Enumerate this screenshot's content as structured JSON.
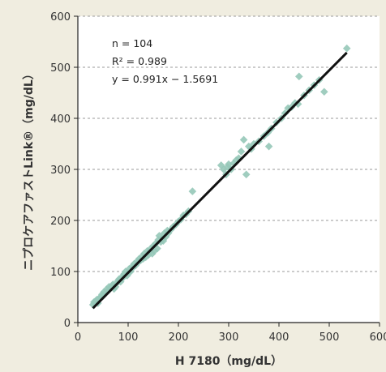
{
  "chart_data": {
    "type": "scatter",
    "xlabel": "H 7180（mg/dL）",
    "ylabel": "ニプロケアファストLink®（mg/dL）",
    "xlim": [
      0,
      600
    ],
    "ylim": [
      0,
      600
    ],
    "x_ticks": [
      "0",
      "100",
      "200",
      "300",
      "400",
      "500",
      "600"
    ],
    "y_ticks": [
      "0",
      "100",
      "200",
      "300",
      "400",
      "500",
      "600"
    ],
    "grid": "dashed-horizontal",
    "annotations": [
      "n = 104",
      "R² = 0.989",
      "y = 0.991x − 1.5691"
    ],
    "regression": {
      "slope": 0.991,
      "intercept": -1.5691,
      "x_range": [
        30,
        535
      ]
    },
    "marker": "diamond",
    "point_color": "#96c8b8",
    "line_color": "#111111",
    "points": [
      [
        30,
        35
      ],
      [
        32,
        40
      ],
      [
        35,
        42
      ],
      [
        38,
        45
      ],
      [
        40,
        38
      ],
      [
        42,
        47
      ],
      [
        45,
        50
      ],
      [
        48,
        55
      ],
      [
        50,
        52
      ],
      [
        52,
        60
      ],
      [
        55,
        58
      ],
      [
        57,
        65
      ],
      [
        60,
        62
      ],
      [
        62,
        70
      ],
      [
        65,
        68
      ],
      [
        68,
        72
      ],
      [
        70,
        75
      ],
      [
        72,
        66
      ],
      [
        75,
        70
      ],
      [
        78,
        78
      ],
      [
        80,
        82
      ],
      [
        82,
        85
      ],
      [
        85,
        80
      ],
      [
        88,
        90
      ],
      [
        90,
        88
      ],
      [
        92,
        95
      ],
      [
        95,
        100
      ],
      [
        98,
        92
      ],
      [
        100,
        98
      ],
      [
        102,
        105
      ],
      [
        105,
        100
      ],
      [
        108,
        110
      ],
      [
        110,
        108
      ],
      [
        112,
        115
      ],
      [
        115,
        112
      ],
      [
        118,
        120
      ],
      [
        120,
        118
      ],
      [
        122,
        125
      ],
      [
        125,
        122
      ],
      [
        128,
        130
      ],
      [
        130,
        125
      ],
      [
        132,
        135
      ],
      [
        135,
        128
      ],
      [
        138,
        140
      ],
      [
        140,
        132
      ],
      [
        142,
        138
      ],
      [
        145,
        145
      ],
      [
        148,
        135
      ],
      [
        150,
        150
      ],
      [
        152,
        140
      ],
      [
        155,
        155
      ],
      [
        158,
        145
      ],
      [
        160,
        162
      ],
      [
        162,
        170
      ],
      [
        165,
        158
      ],
      [
        168,
        165
      ],
      [
        170,
        160
      ],
      [
        172,
        175
      ],
      [
        175,
        168
      ],
      [
        178,
        180
      ],
      [
        180,
        175
      ],
      [
        185,
        182
      ],
      [
        190,
        188
      ],
      [
        195,
        192
      ],
      [
        200,
        198
      ],
      [
        205,
        202
      ],
      [
        210,
        210
      ],
      [
        215,
        212
      ],
      [
        220,
        218
      ],
      [
        228,
        257
      ],
      [
        285,
        308
      ],
      [
        290,
        300
      ],
      [
        295,
        290
      ],
      [
        298,
        305
      ],
      [
        300,
        310
      ],
      [
        305,
        300
      ],
      [
        310,
        312
      ],
      [
        315,
        318
      ],
      [
        320,
        322
      ],
      [
        325,
        335
      ],
      [
        330,
        358
      ],
      [
        335,
        290
      ],
      [
        340,
        345
      ],
      [
        345,
        340
      ],
      [
        350,
        350
      ],
      [
        360,
        355
      ],
      [
        370,
        365
      ],
      [
        378,
        372
      ],
      [
        380,
        345
      ],
      [
        385,
        380
      ],
      [
        395,
        392
      ],
      [
        405,
        400
      ],
      [
        412,
        410
      ],
      [
        418,
        420
      ],
      [
        425,
        422
      ],
      [
        432,
        430
      ],
      [
        438,
        428
      ],
      [
        440,
        482
      ],
      [
        450,
        445
      ],
      [
        460,
        455
      ],
      [
        470,
        465
      ],
      [
        480,
        475
      ],
      [
        490,
        452
      ],
      [
        535,
        537
      ]
    ]
  }
}
